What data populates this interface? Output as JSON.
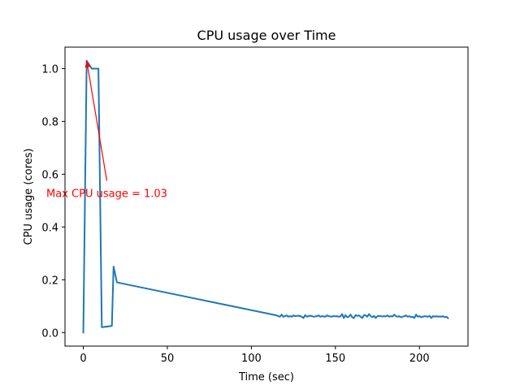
{
  "chart_data": {
    "type": "line",
    "title": "CPU usage over Time",
    "xlabel": "Time (sec)",
    "ylabel": "CPU usage (cores)",
    "xlim": [
      -10.9,
      228.9
    ],
    "ylim": [
      -0.0515,
      1.0815
    ],
    "xticks": [
      0,
      50,
      100,
      150,
      200
    ],
    "yticks": [
      0.0,
      0.2,
      0.4,
      0.6,
      0.8,
      1.0
    ],
    "xtick_labels": [
      "0",
      "50",
      "100",
      "150",
      "200"
    ],
    "ytick_labels": [
      "0.0",
      "0.2",
      "0.4",
      "0.6",
      "0.8",
      "1.0"
    ],
    "grid": false,
    "line_color": "#1f77b4",
    "series": [
      {
        "x": [
          0,
          2,
          3,
          4,
          5,
          6,
          7,
          8,
          9,
          11,
          17,
          18,
          20,
          115,
          116,
          117,
          118,
          119,
          120,
          121,
          122,
          123,
          124,
          125,
          126,
          127,
          128,
          129,
          130,
          131,
          132,
          133,
          134,
          135,
          136,
          137,
          138,
          139,
          140,
          141,
          142,
          143,
          144,
          145,
          146,
          147,
          148,
          149,
          150,
          151,
          152,
          153,
          154,
          155,
          156,
          157,
          158,
          159,
          160,
          161,
          162,
          163,
          164,
          165,
          166,
          167,
          168,
          169,
          170,
          171,
          172,
          173,
          174,
          175,
          176,
          177,
          178,
          179,
          180,
          181,
          182,
          183,
          184,
          185,
          186,
          187,
          188,
          189,
          190,
          191,
          192,
          193,
          194,
          195,
          196,
          197,
          198,
          199,
          200,
          201,
          202,
          203,
          204,
          205,
          206,
          207,
          208,
          209,
          210,
          211,
          212,
          213,
          214,
          215,
          216,
          217
        ],
        "y": [
          0.0,
          1.03,
          1.02,
          1.01,
          1.0,
          1.0,
          1.0,
          1.0,
          1.0,
          0.02,
          0.025,
          0.25,
          0.19,
          0.065,
          0.062,
          0.06,
          0.068,
          0.06,
          0.062,
          0.065,
          0.06,
          0.062,
          0.06,
          0.065,
          0.062,
          0.063,
          0.064,
          0.062,
          0.06,
          0.055,
          0.066,
          0.06,
          0.062,
          0.064,
          0.062,
          0.06,
          0.061,
          0.062,
          0.065,
          0.06,
          0.062,
          0.061,
          0.06,
          0.065,
          0.062,
          0.061,
          0.06,
          0.063,
          0.061,
          0.062,
          0.06,
          0.061,
          0.07,
          0.055,
          0.066,
          0.058,
          0.06,
          0.068,
          0.058,
          0.055,
          0.066,
          0.063,
          0.065,
          0.06,
          0.055,
          0.066,
          0.065,
          0.06,
          0.07,
          0.062,
          0.058,
          0.063,
          0.055,
          0.062,
          0.063,
          0.062,
          0.061,
          0.062,
          0.061,
          0.065,
          0.06,
          0.062,
          0.061,
          0.068,
          0.062,
          0.06,
          0.062,
          0.058,
          0.06,
          0.062,
          0.065,
          0.06,
          0.062,
          0.058,
          0.06,
          0.055,
          0.068,
          0.06,
          0.062,
          0.058,
          0.06,
          0.062,
          0.061,
          0.06,
          0.063,
          0.055,
          0.062,
          0.06,
          0.062,
          0.06,
          0.061,
          0.06,
          0.062,
          0.058,
          0.06,
          0.055
        ]
      }
    ],
    "annotation": {
      "text": "Max CPU usage = 1.03",
      "color": "#ff0000",
      "point": [
        2,
        1.03
      ],
      "text_pos": [
        14,
        0.575
      ]
    }
  }
}
